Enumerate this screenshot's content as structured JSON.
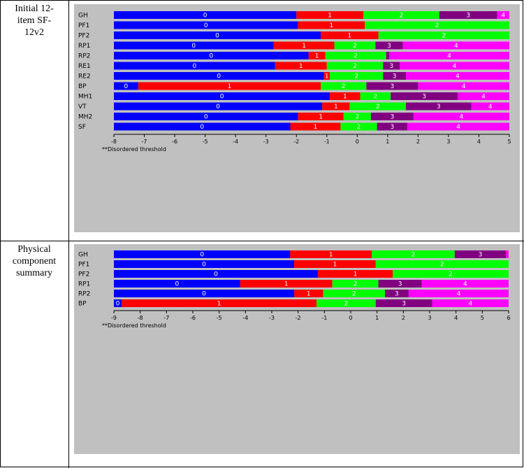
{
  "table": {
    "rows": [
      {
        "label_lines": [
          "Initial 12-",
          "item SF-",
          "12v2"
        ]
      },
      {
        "label_lines": [
          "Physical",
          "component",
          "summary"
        ]
      }
    ]
  },
  "colors": {
    "category_0": "#0000ff",
    "category_1": "#ff0000",
    "category_2": "#00ff00",
    "category_3": "#800080",
    "category_4": "#ff00ff",
    "panel_background": "#c0c0c0"
  },
  "chart_data": [
    {
      "type": "bar",
      "orientation": "horizontal-stacked",
      "xlim": [
        -8,
        5
      ],
      "x_ticks": [
        "-8",
        "-7",
        "-6",
        "-5",
        "-4",
        "-3",
        "-2",
        "-1",
        "0",
        "1",
        "2",
        "3",
        "4",
        "5"
      ],
      "footnote": "**Disordered threshold",
      "items": [
        {
          "label": "GH",
          "bounds": [
            -8,
            -2.0,
            0.2,
            2.7,
            4.6,
            5
          ],
          "labels": [
            "0",
            "1",
            "2",
            "3",
            "4"
          ]
        },
        {
          "label": "PF1",
          "bounds": [
            -8,
            -1.95,
            0.25,
            5
          ],
          "labels": [
            "0",
            "1",
            "2"
          ]
        },
        {
          "label": "PF2",
          "bounds": [
            -8,
            -1.2,
            0.7,
            5
          ],
          "labels": [
            "0",
            "1",
            "2"
          ]
        },
        {
          "label": "RP1",
          "bounds": [
            -8,
            -2.75,
            -0.75,
            0.6,
            1.5,
            5
          ],
          "labels": [
            "0",
            "1",
            "2",
            "3",
            "4"
          ]
        },
        {
          "label": "RP2",
          "bounds": [
            -8,
            -1.6,
            -1.05,
            0.95,
            1.05,
            5
          ],
          "labels": [
            "0",
            "1",
            "2",
            "",
            "4"
          ]
        },
        {
          "label": "RE1",
          "bounds": [
            -8,
            -2.7,
            -1.0,
            0.85,
            1.4,
            5
          ],
          "labels": [
            "0",
            "1",
            "2",
            "3",
            "4"
          ]
        },
        {
          "label": "RE2",
          "bounds": [
            -8,
            -1.1,
            -0.9,
            0.85,
            1.6,
            5
          ],
          "labels": [
            "0",
            "1",
            "2",
            "3",
            "4"
          ]
        },
        {
          "label": "BP",
          "bounds": [
            -8,
            -7.2,
            -1.2,
            0.3,
            2.0,
            5
          ],
          "labels": [
            "0",
            "1",
            "2",
            "3",
            "4"
          ]
        },
        {
          "label": "MH1",
          "bounds": [
            -8,
            -0.9,
            0.1,
            1.1,
            3.3,
            5
          ],
          "labels": [
            "0",
            "1",
            "2",
            "3",
            "4"
          ]
        },
        {
          "label": "VT",
          "bounds": [
            -8,
            -1.15,
            -0.25,
            1.6,
            3.75,
            5
          ],
          "labels": [
            "0",
            "1",
            "2",
            "3",
            "4"
          ]
        },
        {
          "label": "MH2",
          "bounds": [
            -8,
            -1.95,
            -0.45,
            0.45,
            1.85,
            5
          ],
          "labels": [
            "0",
            "1",
            "2",
            "3",
            "4"
          ]
        },
        {
          "label": "SF",
          "bounds": [
            -8,
            -2.2,
            -0.55,
            0.65,
            1.65,
            5
          ],
          "labels": [
            "0",
            "1",
            "2",
            "3",
            "4"
          ]
        }
      ]
    },
    {
      "type": "bar",
      "orientation": "horizontal-stacked",
      "xlim": [
        -9,
        6
      ],
      "x_ticks": [
        "-9",
        "-8",
        "-7",
        "-6",
        "-5",
        "-4",
        "-3",
        "-2",
        "-1",
        "0",
        "1",
        "2",
        "3",
        "4",
        "5",
        "6"
      ],
      "footnote": "**Disordered threshold",
      "items": [
        {
          "label": "GH",
          "bounds": [
            -9,
            -2.3,
            0.8,
            3.95,
            5.9,
            6
          ],
          "labels": [
            "0",
            "1",
            "2",
            "3",
            "4"
          ]
        },
        {
          "label": "PF1",
          "bounds": [
            -9,
            -2.15,
            0.95,
            6
          ],
          "labels": [
            "0",
            "1",
            "2"
          ]
        },
        {
          "label": "PF2",
          "bounds": [
            -9,
            -1.25,
            1.6,
            6
          ],
          "labels": [
            "0",
            "1",
            "2"
          ]
        },
        {
          "label": "RP1",
          "bounds": [
            -9,
            -4.2,
            -0.7,
            1.05,
            2.7,
            6
          ],
          "labels": [
            "0",
            "1",
            "2",
            "3",
            "4"
          ]
        },
        {
          "label": "RP2",
          "bounds": [
            -9,
            -2.15,
            -1.05,
            1.3,
            2.2,
            6
          ],
          "labels": [
            "0",
            "1",
            "2",
            "3",
            "4"
          ]
        },
        {
          "label": "BP",
          "bounds": [
            -9,
            -8.7,
            -1.3,
            0.95,
            3.1,
            6
          ],
          "labels": [
            "0",
            "1",
            "2",
            "3",
            "4"
          ]
        }
      ]
    }
  ]
}
